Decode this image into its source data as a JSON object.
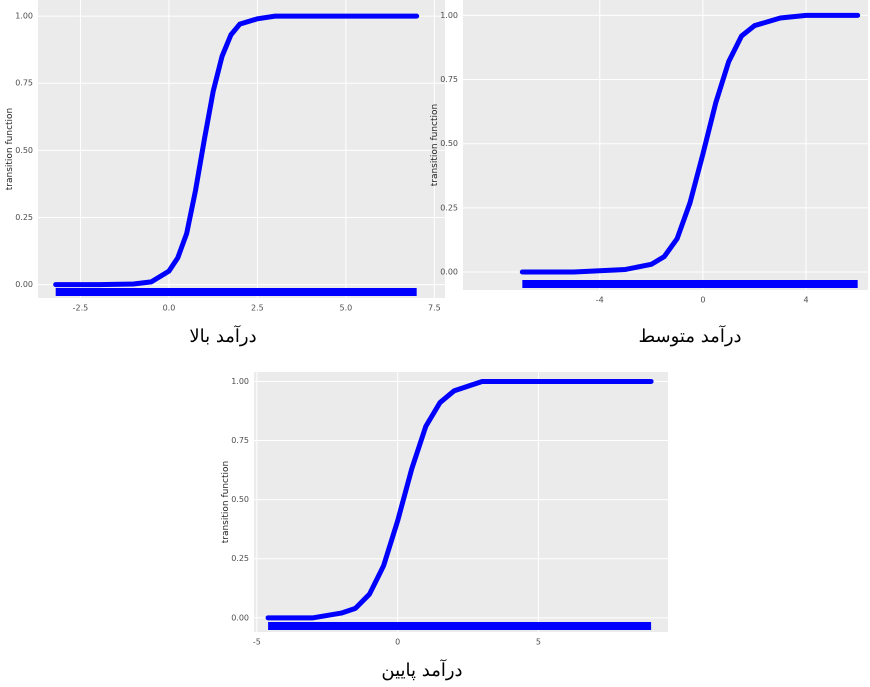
{
  "chart_data": [
    {
      "type": "line",
      "ylabel": "transition function",
      "caption": "درآمد بالا",
      "x": [
        -3.2,
        -2,
        -1,
        -0.5,
        0,
        0.25,
        0.5,
        0.75,
        1,
        1.25,
        1.5,
        1.75,
        2,
        2.5,
        3,
        4,
        5,
        7
      ],
      "series": [
        {
          "color": "#0000ff",
          "values": [
            0,
            0,
            0.002,
            0.01,
            0.05,
            0.1,
            0.19,
            0.35,
            0.54,
            0.72,
            0.85,
            0.93,
            0.97,
            0.99,
            1,
            1,
            1,
            1
          ]
        }
      ],
      "xlim": [
        -3.7,
        7.8
      ],
      "xticks": [
        -2.5,
        {
          "value": 0,
          "label": "0.0"
        },
        2.5,
        {
          "value": 5,
          "label": "5.0"
        },
        7.5
      ],
      "ylim": [
        -0.05,
        1.06
      ],
      "yticks": [
        {
          "value": 0,
          "label": "0.00"
        },
        {
          "value": 0.25,
          "label": "0.25"
        },
        {
          "value": 0.5,
          "label": "0.50"
        },
        {
          "value": 0.75,
          "label": "0.75"
        },
        {
          "value": 1,
          "label": "1.00"
        }
      ],
      "grid": true
    },
    {
      "type": "line",
      "ylabel": "transition function",
      "caption": "درآمد متوسط",
      "x": [
        -7,
        -5,
        -3,
        -2,
        -1.5,
        -1,
        -0.5,
        0,
        0.5,
        1,
        1.5,
        2,
        3,
        4,
        6
      ],
      "series": [
        {
          "color": "#0000ff",
          "values": [
            0,
            0,
            0.01,
            0.03,
            0.06,
            0.13,
            0.27,
            0.46,
            0.66,
            0.82,
            0.92,
            0.96,
            0.99,
            1,
            1
          ]
        }
      ],
      "xlim": [
        -9.3,
        6.4
      ],
      "xticks": [
        -4,
        0,
        4
      ],
      "ylim": [
        -0.07,
        1.06
      ],
      "yticks": [
        {
          "value": 0,
          "label": "0.00"
        },
        {
          "value": 0.25,
          "label": "0.25"
        },
        {
          "value": 0.5,
          "label": "0.50"
        },
        {
          "value": 0.75,
          "label": "0.75"
        },
        {
          "value": 1,
          "label": "1.00"
        }
      ],
      "grid": true
    },
    {
      "type": "line",
      "ylabel": "transition function",
      "caption": "درآمد پایین",
      "x": [
        -4.6,
        -3,
        -2,
        -1.5,
        -1,
        -0.5,
        0,
        0.5,
        1,
        1.5,
        2,
        3,
        5,
        9
      ],
      "series": [
        {
          "color": "#0000ff",
          "values": [
            0,
            0,
            0.02,
            0.04,
            0.1,
            0.22,
            0.41,
            0.63,
            0.81,
            0.91,
            0.96,
            1,
            1,
            1
          ]
        }
      ],
      "xlim": [
        -5.1,
        9.6
      ],
      "xticks": [
        -5,
        0,
        5
      ],
      "ylim": [
        -0.06,
        1.04
      ],
      "yticks": [
        {
          "value": 0,
          "label": "0.00"
        },
        {
          "value": 0.25,
          "label": "0.25"
        },
        {
          "value": 0.5,
          "label": "0.50"
        },
        {
          "value": 0.75,
          "label": "0.75"
        },
        {
          "value": 1,
          "label": "1.00"
        }
      ],
      "grid": true
    }
  ]
}
